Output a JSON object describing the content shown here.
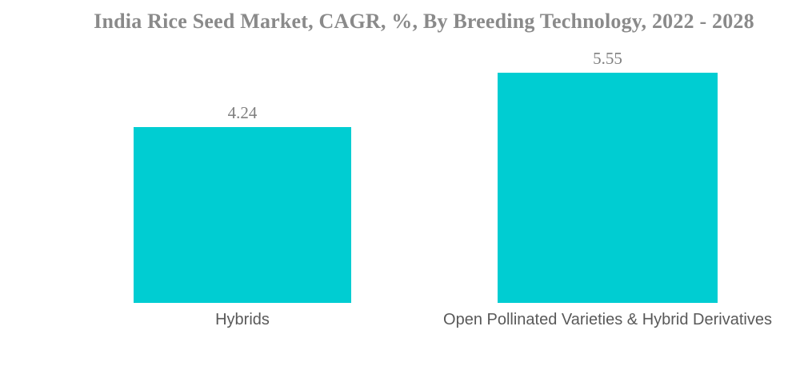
{
  "page": {
    "background_color": "#ffffff"
  },
  "chart_data": {
    "type": "bar",
    "title": "India Rice Seed Market, CAGR, %, By Breeding Technology, 2022 - 2028",
    "categories": [
      "Hybrids",
      "Open Pollinated Varieties & Hybrid Derivatives"
    ],
    "values": [
      4.24,
      5.55
    ],
    "value_labels": [
      "4.24",
      "5.55"
    ],
    "xlabel": "",
    "ylabel": "",
    "ylim": [
      0,
      6
    ],
    "grid": false,
    "legend": false,
    "axes_visible": false,
    "bar_color": "#00cdd2",
    "title_color": "#8a8a8a",
    "value_label_color": "#7f7f7f",
    "category_label_color": "#595959"
  }
}
